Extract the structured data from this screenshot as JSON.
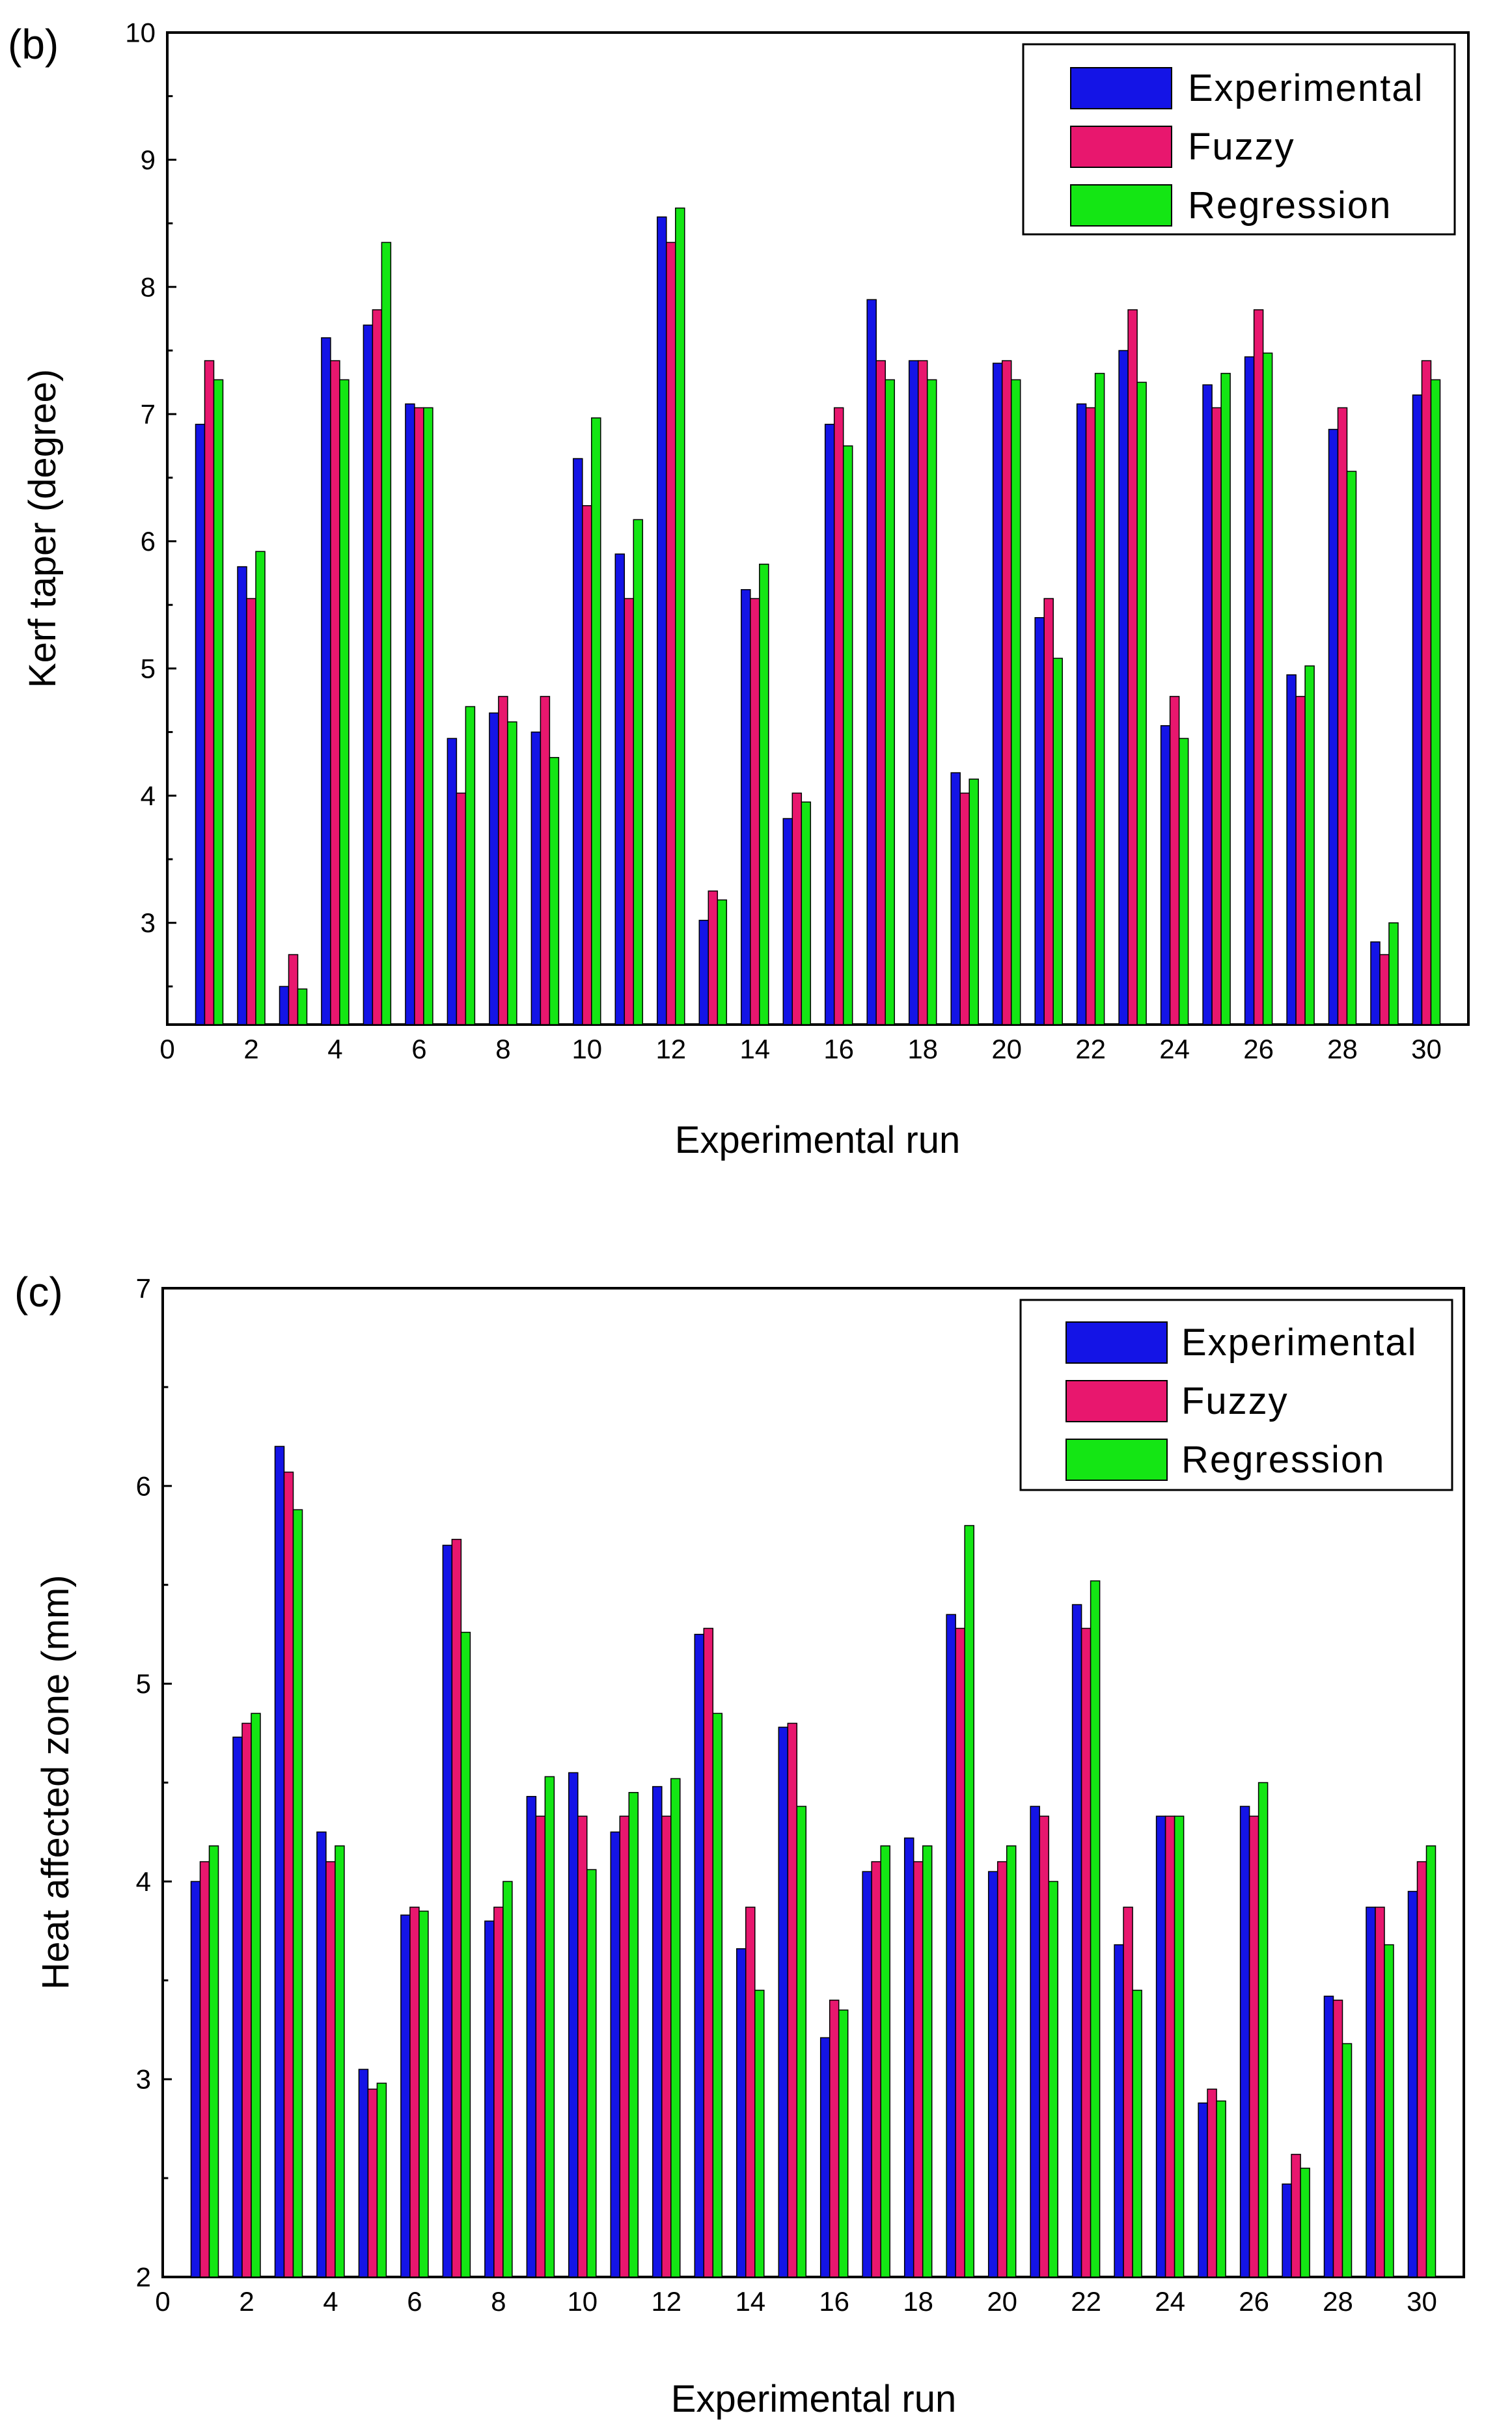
{
  "colors": {
    "Experimental": "#1414e6",
    "Fuzzy": "#e8176e",
    "Regression": "#14e614"
  },
  "chart_data": [
    {
      "type": "bar",
      "panel_label": "(b)",
      "title": "",
      "xlabel": "Experimental run",
      "ylabel": "Kerf taper (degree)",
      "xlim": [
        0,
        31
      ],
      "ylim": [
        2.2,
        10
      ],
      "x_ticks": [
        "0",
        "2",
        "4",
        "6",
        "8",
        "10",
        "12",
        "14",
        "16",
        "18",
        "20",
        "22",
        "24",
        "26",
        "28",
        "30"
      ],
      "y_ticks": [
        "3",
        "4",
        "5",
        "6",
        "7",
        "8",
        "9",
        "10"
      ],
      "legend": {
        "position": "top-right",
        "entries": [
          "Experimental",
          "Fuzzy",
          "Regression"
        ]
      },
      "categories": [
        1,
        2,
        3,
        4,
        5,
        6,
        7,
        8,
        9,
        10,
        11,
        12,
        13,
        14,
        15,
        16,
        17,
        18,
        19,
        20,
        21,
        22,
        23,
        24,
        25,
        26,
        27,
        28,
        29,
        30
      ],
      "series": [
        {
          "name": "Experimental",
          "values": [
            6.92,
            5.8,
            2.5,
            7.6,
            7.7,
            7.08,
            4.45,
            4.65,
            4.5,
            6.65,
            5.9,
            8.55,
            3.02,
            5.62,
            3.82,
            6.92,
            7.9,
            7.42,
            4.18,
            7.4,
            5.4,
            7.08,
            7.5,
            4.55,
            7.23,
            7.45,
            4.95,
            6.88,
            2.85,
            7.15
          ]
        },
        {
          "name": "Fuzzy",
          "values": [
            7.42,
            5.55,
            2.75,
            7.42,
            7.82,
            7.05,
            4.02,
            4.78,
            4.78,
            6.28,
            5.55,
            8.35,
            3.25,
            5.55,
            4.02,
            7.05,
            7.42,
            7.42,
            4.02,
            7.42,
            5.55,
            7.05,
            7.82,
            4.78,
            7.05,
            7.82,
            4.78,
            7.05,
            2.75,
            7.42
          ]
        },
        {
          "name": "Regression",
          "values": [
            7.27,
            5.92,
            2.48,
            7.27,
            8.35,
            7.05,
            4.7,
            4.58,
            4.3,
            6.97,
            6.17,
            8.62,
            3.18,
            5.82,
            3.95,
            6.75,
            7.27,
            7.27,
            4.13,
            7.27,
            5.08,
            7.32,
            7.25,
            4.45,
            7.32,
            7.48,
            5.02,
            6.55,
            3.0,
            7.27
          ]
        }
      ]
    },
    {
      "type": "bar",
      "panel_label": "(c)",
      "title": "",
      "xlabel": "Experimental run",
      "ylabel": "Heat affected zone (mm)",
      "xlim": [
        0,
        31
      ],
      "ylim": [
        2,
        7
      ],
      "x_ticks": [
        "0",
        "2",
        "4",
        "6",
        "8",
        "10",
        "12",
        "14",
        "16",
        "18",
        "20",
        "22",
        "24",
        "26",
        "28",
        "30"
      ],
      "y_ticks": [
        "2",
        "3",
        "4",
        "5",
        "6",
        "7"
      ],
      "legend": {
        "position": "top-right",
        "entries": [
          "Experimental",
          "Fuzzy",
          "Regression"
        ]
      },
      "categories": [
        1,
        2,
        3,
        4,
        5,
        6,
        7,
        8,
        9,
        10,
        11,
        12,
        13,
        14,
        15,
        16,
        17,
        18,
        19,
        20,
        21,
        22,
        23,
        24,
        25,
        26,
        27,
        28,
        29,
        30
      ],
      "series": [
        {
          "name": "Experimental",
          "values": [
            4.0,
            4.73,
            6.2,
            4.25,
            3.05,
            3.83,
            5.7,
            3.8,
            4.43,
            4.55,
            4.25,
            4.48,
            5.25,
            3.66,
            4.78,
            3.21,
            4.05,
            4.22,
            5.35,
            4.05,
            4.38,
            5.4,
            3.68,
            4.33,
            2.88,
            4.38,
            2.47,
            3.42,
            3.87,
            3.95
          ]
        },
        {
          "name": "Fuzzy",
          "values": [
            4.1,
            4.8,
            6.07,
            4.1,
            2.95,
            3.87,
            5.73,
            3.87,
            4.33,
            4.33,
            4.33,
            4.33,
            5.28,
            3.87,
            4.8,
            3.4,
            4.1,
            4.1,
            5.28,
            4.1,
            4.33,
            5.28,
            3.87,
            4.33,
            2.95,
            4.33,
            2.62,
            3.4,
            3.87,
            4.1
          ]
        },
        {
          "name": "Regression",
          "values": [
            4.18,
            4.85,
            5.88,
            4.18,
            2.98,
            3.85,
            5.26,
            4.0,
            4.53,
            4.06,
            4.45,
            4.52,
            4.85,
            3.45,
            4.38,
            3.35,
            4.18,
            4.18,
            5.8,
            4.18,
            4.0,
            5.52,
            3.45,
            4.33,
            2.89,
            4.5,
            2.55,
            3.18,
            3.68,
            4.18
          ]
        }
      ]
    }
  ]
}
